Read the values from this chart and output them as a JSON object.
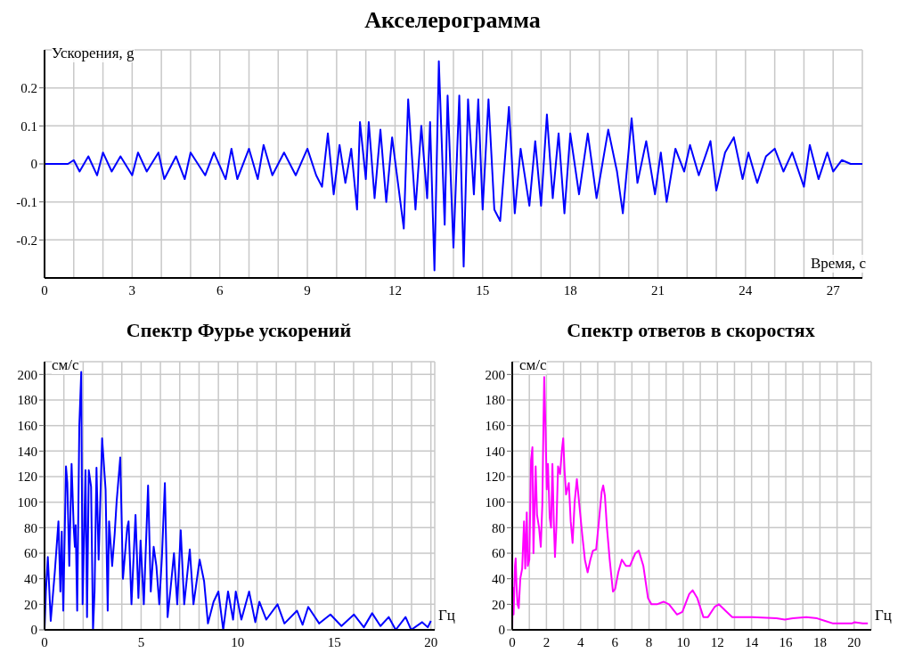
{
  "chart_data": [
    {
      "type": "line",
      "title": "Акселерограмма",
      "xlabel": "Время, с",
      "ylabel": "Ускорения, g",
      "grid": true,
      "xlim": [
        0,
        28
      ],
      "ylim": [
        -0.3,
        0.3
      ],
      "xticks": [
        0,
        {
          "value": 1,
          "label": null
        },
        {
          "value": 2,
          "label": null
        },
        3,
        {
          "value": 4,
          "label": null
        },
        {
          "value": 5,
          "label": null
        },
        6,
        {
          "value": 7,
          "label": null
        },
        {
          "value": 8,
          "label": null
        },
        9,
        {
          "value": 10,
          "label": null
        },
        {
          "value": 11,
          "label": null
        },
        12,
        {
          "value": 13,
          "label": null
        },
        {
          "value": 14,
          "label": null
        },
        15,
        {
          "value": 16,
          "label": null
        },
        {
          "value": 17,
          "label": null
        },
        18,
        {
          "value": 19,
          "label": null
        },
        {
          "value": 20,
          "label": null
        },
        21,
        {
          "value": 22,
          "label": null
        },
        {
          "value": 23,
          "label": null
        },
        24,
        {
          "value": 25,
          "label": null
        },
        {
          "value": 26,
          "label": null
        },
        27
      ],
      "yticks": [
        -0.2,
        -0.1,
        0,
        0.1,
        0.2
      ],
      "series": [
        {
          "color": "#0000ff",
          "x": [
            0,
            0.8,
            1.0,
            1.2,
            1.5,
            1.8,
            2.0,
            2.3,
            2.6,
            3.0,
            3.2,
            3.5,
            3.9,
            4.1,
            4.5,
            4.8,
            5.0,
            5.5,
            5.8,
            6.2,
            6.4,
            6.6,
            7.0,
            7.3,
            7.5,
            7.8,
            8.2,
            8.6,
            9.0,
            9.3,
            9.5,
            9.7,
            9.9,
            10.1,
            10.3,
            10.5,
            10.7,
            10.8,
            11.0,
            11.1,
            11.3,
            11.5,
            11.7,
            11.9,
            12.1,
            12.3,
            12.45,
            12.7,
            12.9,
            13.1,
            13.2,
            13.35,
            13.5,
            13.7,
            13.8,
            14.0,
            14.2,
            14.35,
            14.5,
            14.7,
            14.85,
            15.0,
            15.2,
            15.4,
            15.6,
            15.9,
            16.1,
            16.3,
            16.6,
            16.8,
            17.0,
            17.2,
            17.4,
            17.6,
            17.8,
            18.0,
            18.3,
            18.6,
            18.9,
            19.3,
            19.6,
            19.8,
            20.1,
            20.3,
            20.6,
            20.9,
            21.1,
            21.3,
            21.6,
            21.9,
            22.1,
            22.4,
            22.8,
            23.0,
            23.3,
            23.6,
            23.9,
            24.1,
            24.4,
            24.7,
            25.0,
            25.3,
            25.6,
            26.0,
            26.2,
            26.5,
            26.8,
            27.0,
            27.3,
            27.6,
            28
          ],
          "values": [
            0,
            0,
            0.01,
            -0.02,
            0.02,
            -0.03,
            0.03,
            -0.02,
            0.02,
            -0.03,
            0.03,
            -0.02,
            0.03,
            -0.04,
            0.02,
            -0.04,
            0.03,
            -0.03,
            0.03,
            -0.04,
            0.04,
            -0.04,
            0.04,
            -0.04,
            0.05,
            -0.03,
            0.03,
            -0.03,
            0.04,
            -0.03,
            -0.06,
            0.08,
            -0.08,
            0.05,
            -0.05,
            0.04,
            -0.12,
            0.11,
            -0.04,
            0.11,
            -0.09,
            0.09,
            -0.1,
            0.07,
            -0.05,
            -0.17,
            0.17,
            -0.12,
            0.1,
            -0.09,
            0.11,
            -0.28,
            0.27,
            -0.16,
            0.18,
            -0.22,
            0.18,
            -0.27,
            0.17,
            -0.08,
            0.17,
            -0.12,
            0.17,
            -0.12,
            -0.15,
            0.15,
            -0.13,
            0.04,
            -0.11,
            0.06,
            -0.11,
            0.13,
            -0.09,
            0.08,
            -0.13,
            0.08,
            -0.08,
            0.08,
            -0.09,
            0.09,
            -0.02,
            -0.13,
            0.12,
            -0.05,
            0.06,
            -0.08,
            0.03,
            -0.1,
            0.04,
            -0.02,
            0.05,
            -0.03,
            0.06,
            -0.07,
            0.03,
            0.07,
            -0.04,
            0.03,
            -0.05,
            0.02,
            0.04,
            -0.02,
            0.03,
            -0.06,
            0.05,
            -0.04,
            0.03,
            -0.02,
            0.01,
            0,
            0
          ]
        }
      ]
    },
    {
      "type": "line",
      "title": "Спектр Фурье ускорений",
      "xlabel": "Гц",
      "ylabel": "см/с",
      "grid": true,
      "xlim": [
        0,
        20.2
      ],
      "ylim": [
        0,
        210
      ],
      "xticks": [
        0,
        {
          "value": 1,
          "label": null
        },
        {
          "value": 2,
          "label": null
        },
        {
          "value": 3,
          "label": null
        },
        {
          "value": 4,
          "label": null
        },
        5,
        {
          "value": 6,
          "label": null
        },
        {
          "value": 7,
          "label": null
        },
        {
          "value": 8,
          "label": null
        },
        {
          "value": 9,
          "label": null
        },
        10,
        {
          "value": 11,
          "label": null
        },
        {
          "value": 12,
          "label": null
        },
        {
          "value": 13,
          "label": null
        },
        {
          "value": 14,
          "label": null
        },
        15,
        {
          "value": 16,
          "label": null
        },
        {
          "value": 17,
          "label": null
        },
        {
          "value": 18,
          "label": null
        },
        {
          "value": 19,
          "label": null
        },
        20
      ],
      "yticks": [
        0,
        20,
        40,
        60,
        80,
        100,
        120,
        140,
        160,
        180,
        200
      ],
      "series": [
        {
          "color": "#0000ff",
          "x": [
            0,
            0.07,
            0.17,
            0.32,
            0.53,
            0.72,
            0.82,
            0.89,
            0.97,
            1.11,
            1.18,
            1.28,
            1.4,
            1.51,
            1.57,
            1.61,
            1.69,
            1.8,
            1.9,
            1.97,
            2.12,
            2.2,
            2.29,
            2.41,
            2.51,
            2.59,
            2.69,
            2.8,
            2.98,
            3.16,
            3.27,
            3.34,
            3.5,
            3.63,
            3.73,
            3.92,
            4.06,
            4.28,
            4.35,
            4.5,
            4.71,
            4.86,
            4.97,
            5.14,
            5.36,
            5.5,
            5.65,
            5.79,
            5.94,
            6.08,
            6.23,
            6.37,
            6.51,
            6.7,
            6.87,
            7.05,
            7.23,
            7.52,
            7.71,
            8.03,
            8.26,
            8.46,
            8.75,
            9.0,
            9.25,
            9.5,
            9.76,
            9.9,
            10.19,
            10.59,
            10.91,
            11.12,
            11.48,
            12.06,
            12.42,
            13.07,
            13.36,
            13.65,
            14.22,
            14.8,
            15.37,
            16.02,
            16.53,
            16.96,
            17.39,
            17.82,
            18.18,
            18.69,
            18.98,
            19.55,
            19.84,
            20
          ],
          "values": [
            0,
            30,
            57,
            7,
            45,
            85,
            30,
            77,
            15,
            128,
            115,
            50,
            130,
            80,
            65,
            82,
            15,
            160,
            202,
            20,
            125,
            10,
            125,
            112,
            0,
            30,
            127,
            55,
            150,
            110,
            15,
            85,
            50,
            75,
            100,
            135,
            40,
            80,
            85,
            20,
            90,
            25,
            70,
            20,
            113,
            30,
            65,
            50,
            20,
            58,
            115,
            10,
            30,
            60,
            20,
            78,
            20,
            63,
            20,
            55,
            38,
            5,
            22,
            30,
            0,
            30,
            8,
            30,
            8,
            30,
            6,
            22,
            8,
            20,
            5,
            15,
            4,
            18,
            5,
            12,
            3,
            12,
            2,
            13,
            3,
            10,
            0,
            10,
            0,
            6,
            2,
            7
          ]
        }
      ]
    },
    {
      "type": "line",
      "title": "Спектр ответов в скоростях",
      "xlabel": "Гц",
      "ylabel": "см/с",
      "grid": true,
      "xlim": [
        0,
        21
      ],
      "ylim": [
        0,
        210
      ],
      "xticks": [
        0,
        {
          "value": 1,
          "label": null
        },
        2,
        {
          "value": 3,
          "label": null
        },
        4,
        {
          "value": 5,
          "label": null
        },
        6,
        {
          "value": 7,
          "label": null
        },
        8,
        {
          "value": 9,
          "label": null
        },
        10,
        {
          "value": 11,
          "label": null
        },
        12,
        {
          "value": 13,
          "label": null
        },
        14,
        {
          "value": 15,
          "label": null
        },
        16,
        {
          "value": 17,
          "label": null
        },
        18,
        {
          "value": 19,
          "label": null
        },
        20
      ],
      "yticks": [
        0,
        20,
        40,
        60,
        80,
        100,
        120,
        140,
        160,
        180,
        200
      ],
      "series": [
        {
          "color": "#ff00ff",
          "x": [
            0,
            0.03,
            0.08,
            0.16,
            0.2,
            0.25,
            0.31,
            0.38,
            0.47,
            0.58,
            0.69,
            0.76,
            0.85,
            0.91,
            1.0,
            1.1,
            1.18,
            1.24,
            1.37,
            1.45,
            1.57,
            1.67,
            1.76,
            1.83,
            1.87,
            1.95,
            2.02,
            2.09,
            2.19,
            2.27,
            2.35,
            2.43,
            2.5,
            2.58,
            2.68,
            2.8,
            2.9,
            2.98,
            3.06,
            3.15,
            3.31,
            3.42,
            3.53,
            3.65,
            3.78,
            3.91,
            4.09,
            4.25,
            4.41,
            4.57,
            4.72,
            4.91,
            5.07,
            5.23,
            5.32,
            5.42,
            5.54,
            5.7,
            5.89,
            6.02,
            6.2,
            6.41,
            6.65,
            6.88,
            7.2,
            7.4,
            7.67,
            7.94,
            8.14,
            8.46,
            8.85,
            9.17,
            9.64,
            9.95,
            10.35,
            10.55,
            10.82,
            11.18,
            11.45,
            11.84,
            12.08,
            12.47,
            12.87,
            14.05,
            15.46,
            15.94,
            16.41,
            17.2,
            17.83,
            18.3,
            18.77,
            19.87,
            20.03,
            20.5,
            20.8
          ],
          "values": [
            0,
            33,
            12,
            50,
            56,
            35,
            20,
            17,
            40,
            48,
            85,
            48,
            92,
            50,
            55,
            133,
            143,
            60,
            128,
            90,
            80,
            65,
            98,
            165,
            198,
            155,
            110,
            130,
            88,
            80,
            130,
            85,
            57,
            80,
            128,
            122,
            140,
            150,
            125,
            106,
            115,
            85,
            68,
            100,
            118,
            100,
            75,
            55,
            45,
            55,
            62,
            63,
            85,
            108,
            113,
            105,
            80,
            55,
            30,
            32,
            45,
            55,
            50,
            50,
            60,
            62,
            50,
            25,
            20,
            20,
            22,
            20,
            12,
            14,
            28,
            31,
            25,
            10,
            10,
            18,
            20,
            15,
            10,
            10,
            9,
            8,
            9,
            10,
            9,
            7,
            5,
            5,
            6,
            5,
            5
          ]
        }
      ]
    }
  ]
}
